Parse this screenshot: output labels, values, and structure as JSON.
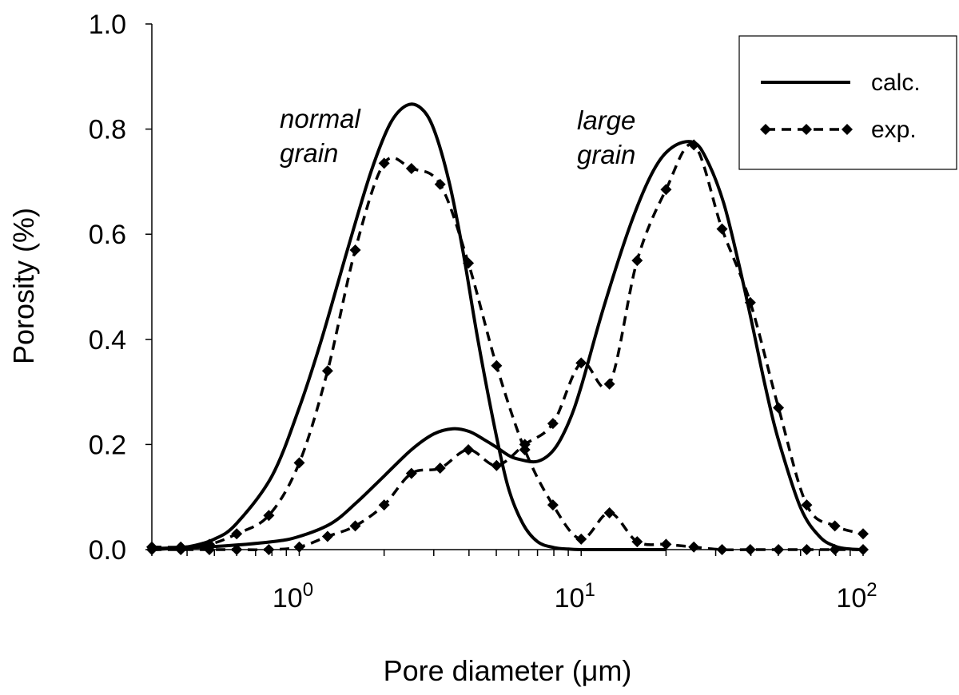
{
  "chart_data": {
    "type": "line",
    "title": "",
    "xlabel": "Pore diameter (μm)",
    "ylabel": "Porosity (%)",
    "xscale": "log",
    "xlim": [
      0.3,
      100
    ],
    "ylim": [
      0,
      1.0
    ],
    "grid": false,
    "legend_position": "top-right",
    "y_ticks": [
      "0.0",
      "0.2",
      "0.4",
      "0.6",
      "0.8",
      "1.0"
    ],
    "x_ticks": [
      {
        "base": "10",
        "exp": "0"
      },
      {
        "base": "10",
        "exp": "1"
      },
      {
        "base": "10",
        "exp": "2"
      }
    ],
    "annotations": [
      {
        "lines": [
          "normal",
          "grain"
        ]
      },
      {
        "lines": [
          "large",
          "grain"
        ]
      }
    ],
    "legend": [
      {
        "label": "calc.",
        "style": "solid"
      },
      {
        "label": "exp.",
        "style": "dashed-diamond"
      }
    ],
    "series": [
      {
        "legend": "calc.",
        "style": "solid",
        "x": [
          0.3,
          0.4,
          0.5,
          0.6,
          0.8,
          1.0,
          1.2,
          1.5,
          1.8,
          2.1,
          2.4,
          2.7,
          3.0,
          3.4,
          3.8,
          4.3,
          4.9,
          5.5,
          6.2,
          7.0,
          8.0,
          9.0,
          10,
          12,
          15,
          20
        ],
        "y": [
          0.0,
          0.005,
          0.02,
          0.05,
          0.14,
          0.27,
          0.4,
          0.58,
          0.72,
          0.81,
          0.845,
          0.84,
          0.8,
          0.7,
          0.57,
          0.4,
          0.24,
          0.12,
          0.05,
          0.015,
          0.004,
          0.001,
          0.0,
          0.0,
          0.0,
          0.0
        ]
      },
      {
        "legend": "calc.",
        "style": "solid",
        "x": [
          0.3,
          0.5,
          0.8,
          1.0,
          1.3,
          1.6,
          2.0,
          2.5,
          3.0,
          3.5,
          4.0,
          4.5,
          5.0,
          5.5,
          6.0,
          7.0,
          8.0,
          9.0,
          10,
          12,
          15,
          18,
          21,
          25,
          28,
          32,
          36,
          40,
          45,
          50,
          60,
          70,
          80,
          90,
          100
        ],
        "y": [
          0.002,
          0.006,
          0.015,
          0.025,
          0.05,
          0.09,
          0.14,
          0.19,
          0.22,
          0.23,
          0.225,
          0.21,
          0.195,
          0.18,
          0.172,
          0.168,
          0.19,
          0.24,
          0.31,
          0.46,
          0.62,
          0.72,
          0.765,
          0.775,
          0.74,
          0.66,
          0.55,
          0.44,
          0.31,
          0.21,
          0.08,
          0.025,
          0.006,
          0.001,
          0.0
        ]
      },
      {
        "legend": "exp.",
        "style": "dashed-diamond",
        "x": [
          0.3,
          0.38,
          0.48,
          0.6,
          0.78,
          1.0,
          1.26,
          1.58,
          2.0,
          2.5,
          3.16,
          3.98,
          5.01,
          6.31,
          7.94,
          10,
          12.6,
          15.8,
          20,
          25.1,
          31.6,
          39.8,
          50.1,
          63.1,
          79.4,
          100
        ],
        "y": [
          0.005,
          0.005,
          0.01,
          0.03,
          0.065,
          0.165,
          0.34,
          0.57,
          0.735,
          0.725,
          0.695,
          0.545,
          0.35,
          0.19,
          0.085,
          0.02,
          0.07,
          0.015,
          0.01,
          0.005,
          0.0,
          0.0,
          0.0,
          0.0,
          0.0,
          0.0
        ]
      },
      {
        "legend": "exp.",
        "style": "dashed-diamond",
        "x": [
          0.3,
          0.38,
          0.48,
          0.6,
          0.78,
          1.0,
          1.26,
          1.58,
          2.0,
          2.5,
          3.16,
          3.98,
          5.01,
          6.31,
          7.94,
          10,
          12.6,
          15.8,
          20,
          25.1,
          31.6,
          39.8,
          50.1,
          63.1,
          79.4,
          100
        ],
        "y": [
          0.0,
          0.0,
          0.0,
          0.0,
          0.0,
          0.005,
          0.025,
          0.045,
          0.085,
          0.145,
          0.155,
          0.19,
          0.16,
          0.2,
          0.24,
          0.355,
          0.315,
          0.55,
          0.685,
          0.77,
          0.61,
          0.47,
          0.27,
          0.085,
          0.045,
          0.03
        ]
      }
    ]
  }
}
